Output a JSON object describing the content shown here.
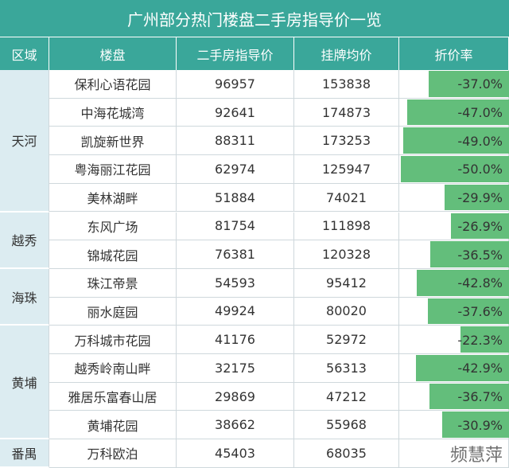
{
  "header": {
    "title": "广州部分热门楼盘二手房指导价一览"
  },
  "table": {
    "columns": [
      "区域",
      "楼盘",
      "二手房指导价",
      "挂牌均价",
      "折价率"
    ],
    "regions": [
      {
        "name": "天河",
        "rows": [
          {
            "name": "保利心语花园",
            "guide_price": 96957,
            "listing_price": 153838,
            "discount": -37.0,
            "discount_label": "-37.0%"
          },
          {
            "name": "中海花城湾",
            "guide_price": 92641,
            "listing_price": 174873,
            "discount": -47.0,
            "discount_label": "-47.0%"
          },
          {
            "name": "凯旋新世界",
            "guide_price": 88311,
            "listing_price": 173253,
            "discount": -49.0,
            "discount_label": "-49.0%"
          },
          {
            "name": "粤海丽江花园",
            "guide_price": 62974,
            "listing_price": 125947,
            "discount": -50.0,
            "discount_label": "-50.0%"
          },
          {
            "name": "美林湖畔",
            "guide_price": 51884,
            "listing_price": 74021,
            "discount": -29.9,
            "discount_label": "-29.9%"
          }
        ]
      },
      {
        "name": "越秀",
        "rows": [
          {
            "name": "东风广场",
            "guide_price": 81754,
            "listing_price": 111898,
            "discount": -26.9,
            "discount_label": "-26.9%"
          },
          {
            "name": "锦城花园",
            "guide_price": 76381,
            "listing_price": 120328,
            "discount": -36.5,
            "discount_label": "-36.5%"
          }
        ]
      },
      {
        "name": "海珠",
        "rows": [
          {
            "name": "珠江帝景",
            "guide_price": 54593,
            "listing_price": 95412,
            "discount": -42.8,
            "discount_label": "-42.8%"
          },
          {
            "name": "丽水庭园",
            "guide_price": 49924,
            "listing_price": 80020,
            "discount": -37.6,
            "discount_label": "-37.6%"
          }
        ]
      },
      {
        "name": "黄埔",
        "rows": [
          {
            "name": "万科城市花园",
            "guide_price": 41176,
            "listing_price": 52972,
            "discount": -22.3,
            "discount_label": "-22.3%"
          },
          {
            "name": "越秀岭南山畔",
            "guide_price": 32175,
            "listing_price": 56313,
            "discount": -42.9,
            "discount_label": "-42.9%"
          },
          {
            "name": "雅居乐富春山居",
            "guide_price": 29869,
            "listing_price": 47212,
            "discount": -36.7,
            "discount_label": "-36.7%"
          },
          {
            "name": "黄埔花园",
            "guide_price": 38662,
            "listing_price": 55968,
            "discount": -30.9,
            "discount_label": "-30.9%"
          }
        ]
      },
      {
        "name": "番禺",
        "rows": [
          {
            "name": "万科欧泊",
            "guide_price": 45403,
            "listing_price": 68035,
            "discount": null
          }
        ]
      }
    ]
  },
  "watermark": "频慧萍"
}
